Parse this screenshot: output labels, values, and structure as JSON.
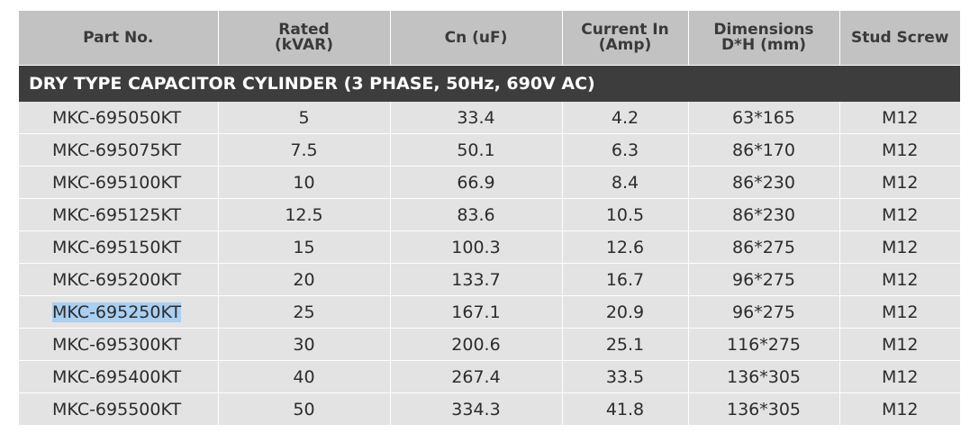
{
  "table": {
    "headers": [
      {
        "lines": [
          "Part No."
        ]
      },
      {
        "lines": [
          "Rated",
          "(kVAR)"
        ]
      },
      {
        "lines": [
          "Cn (uF)"
        ]
      },
      {
        "lines": [
          "Current In",
          "(Amp)"
        ]
      },
      {
        "lines": [
          "Dimensions",
          "D*H (mm)"
        ]
      },
      {
        "lines": [
          "Stud Screw"
        ]
      }
    ],
    "section_title": "DRY TYPE CAPACITOR CYLINDER (3 PHASE, 50Hz, 690V AC)",
    "rows": [
      [
        "MKC-695050KT",
        "5",
        "33.4",
        "4.2",
        "63*165",
        "M12"
      ],
      [
        "MKC-695075KT",
        "7.5",
        "50.1",
        "6.3",
        "86*170",
        "M12"
      ],
      [
        "MKC-695100KT",
        "10",
        "66.9",
        "8.4",
        "86*230",
        "M12"
      ],
      [
        "MKC-695125KT",
        "12.5",
        "83.6",
        "10.5",
        "86*230",
        "M12"
      ],
      [
        "MKC-695150KT",
        "15",
        "100.3",
        "12.6",
        "86*275",
        "M12"
      ],
      [
        "MKC-695200KT",
        "20",
        "133.7",
        "16.7",
        "96*275",
        "M12"
      ],
      [
        "MKC-695250KT",
        "25",
        "167.1",
        "20.9",
        "96*275",
        "M12"
      ],
      [
        "MKC-695300KT",
        "30",
        "200.6",
        "25.1",
        "116*275",
        "M12"
      ],
      [
        "MKC-695400KT",
        "40",
        "267.4",
        "33.5",
        "136*305",
        "M12"
      ],
      [
        "MKC-695500KT",
        "50",
        "334.3",
        "41.8",
        "136*305",
        "M12"
      ]
    ],
    "selected_text": "MKC-695250KT",
    "colors": {
      "header_bg": "#c2c2c2",
      "section_bg": "#3d3d3d",
      "row_bg": "#e3e3e3",
      "selection": "#a9cff1"
    }
  }
}
